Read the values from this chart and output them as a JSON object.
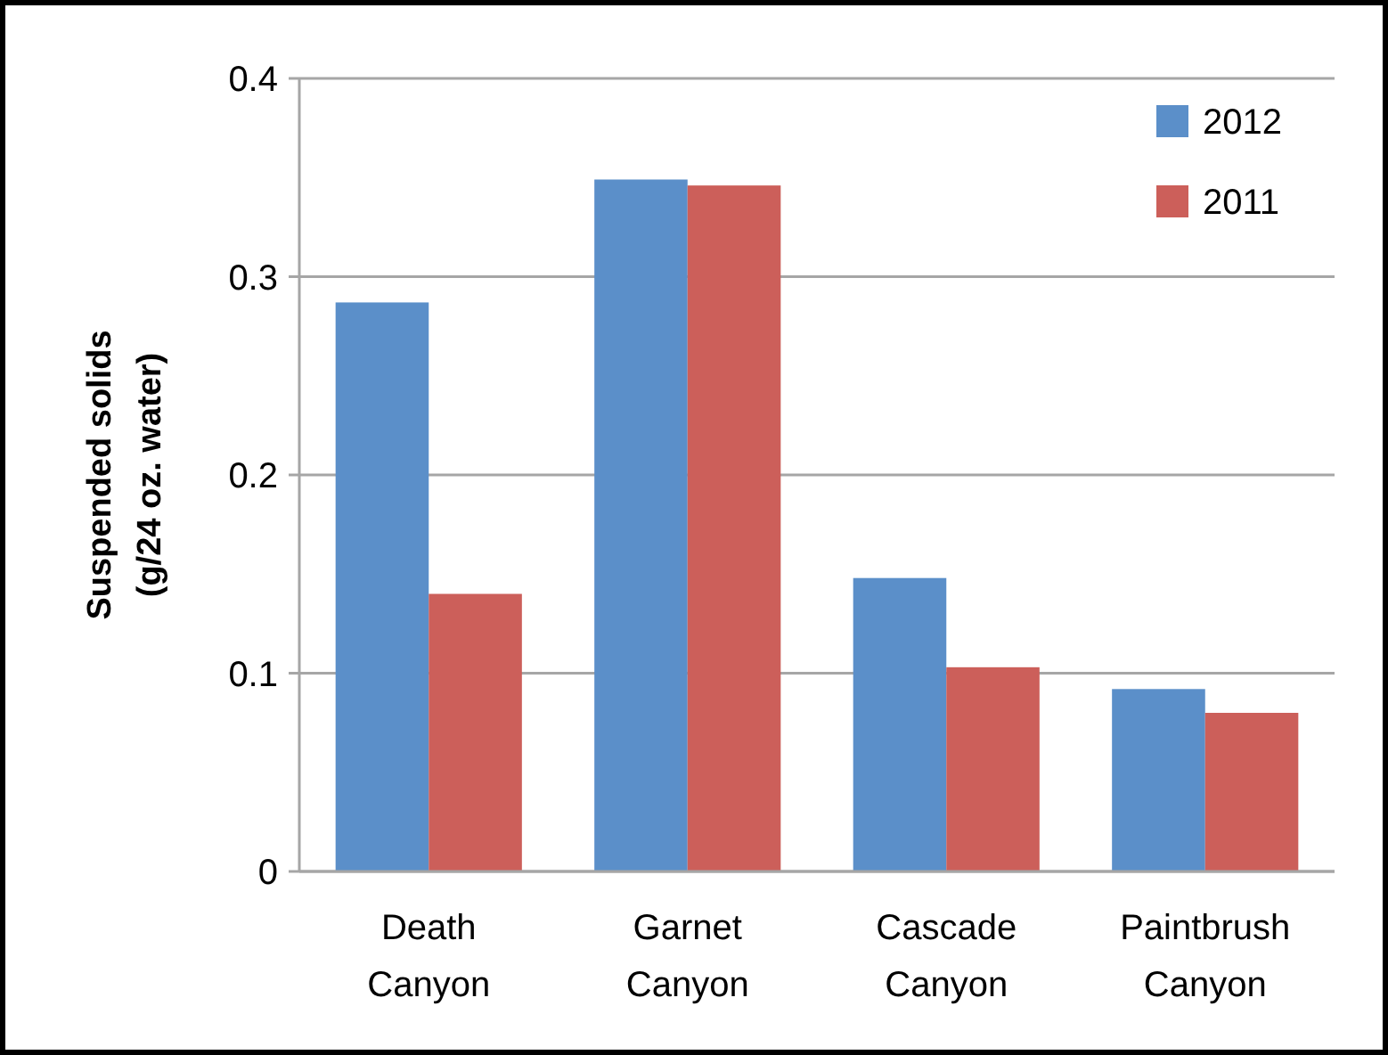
{
  "chart_data": {
    "type": "bar",
    "ylabel": "Suspended solids\n(g/24 oz. water)",
    "categories": [
      "Death Canyon",
      "Garnet Canyon",
      "Cascade Canyon",
      "Paintbrush Canyon"
    ],
    "series": [
      {
        "name": "2012",
        "color": "#5b8fc9",
        "values": [
          0.287,
          0.349,
          0.148,
          0.092
        ]
      },
      {
        "name": "2011",
        "color": "#cc5f5a",
        "values": [
          0.14,
          0.346,
          0.103,
          0.08
        ]
      }
    ],
    "ylim": [
      0,
      0.4
    ],
    "yticks": [
      {
        "value": 0,
        "label": "0"
      },
      0.1,
      0.2,
      0.3,
      0.4
    ],
    "grid": "y",
    "legend": "top right"
  }
}
